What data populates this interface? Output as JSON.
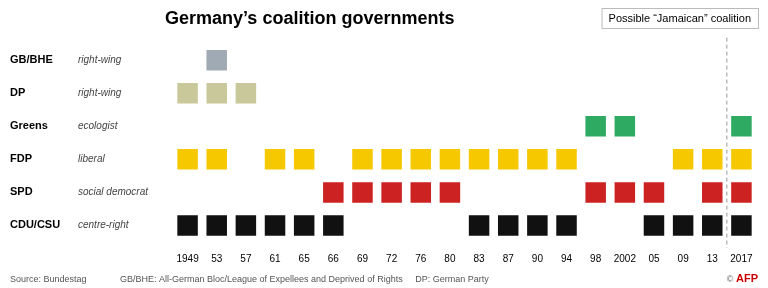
{
  "chart_data": {
    "type": "scatter",
    "title": "Germany’s coalition governments",
    "annotations": [
      {
        "text": "Possible “Jamaican” coalition",
        "x": "2017"
      }
    ],
    "footnotes": [
      "Source: Bundestag",
      "GB/BHE: All-German Bloc/League of Expellees and Deprived of Rights     DP: German Party",
      "© AFP"
    ],
    "categories": [
      "1949",
      "53",
      "57",
      "61",
      "65",
      "66",
      "69",
      "72",
      "76",
      "80",
      "83",
      "87",
      "90",
      "94",
      "98",
      "2002",
      "05",
      "09",
      "13",
      "2017"
    ],
    "series": [
      {
        "name": "GB/BHE",
        "description": "right-wing",
        "color": "#a0aab4",
        "x": [
          "53"
        ]
      },
      {
        "name": "DP",
        "description": "right-wing",
        "color": "#c8c89a",
        "x": [
          "1949",
          "53",
          "57"
        ]
      },
      {
        "name": "Greens",
        "description": "ecologist",
        "color": "#2eaa62",
        "x": [
          "98",
          "2002",
          "2017"
        ]
      },
      {
        "name": "FDP",
        "description": "liberal",
        "color": "#f5c800",
        "x": [
          "1949",
          "53",
          "61",
          "65",
          "69",
          "72",
          "76",
          "80",
          "83",
          "87",
          "90",
          "94",
          "09",
          "13",
          "2017"
        ]
      },
      {
        "name": "SPD",
        "description": "social democrat",
        "color": "#cc2222",
        "x": [
          "66",
          "69",
          "72",
          "76",
          "80",
          "98",
          "2002",
          "05",
          "13",
          "2017"
        ]
      },
      {
        "name": "CDU/CSU",
        "description": "centre-right",
        "color": "#111111",
        "x": [
          "1949",
          "53",
          "57",
          "61",
          "65",
          "66",
          "83",
          "87",
          "90",
          "94",
          "05",
          "09",
          "13",
          "2017"
        ]
      }
    ],
    "marker": "square",
    "grid": false
  }
}
